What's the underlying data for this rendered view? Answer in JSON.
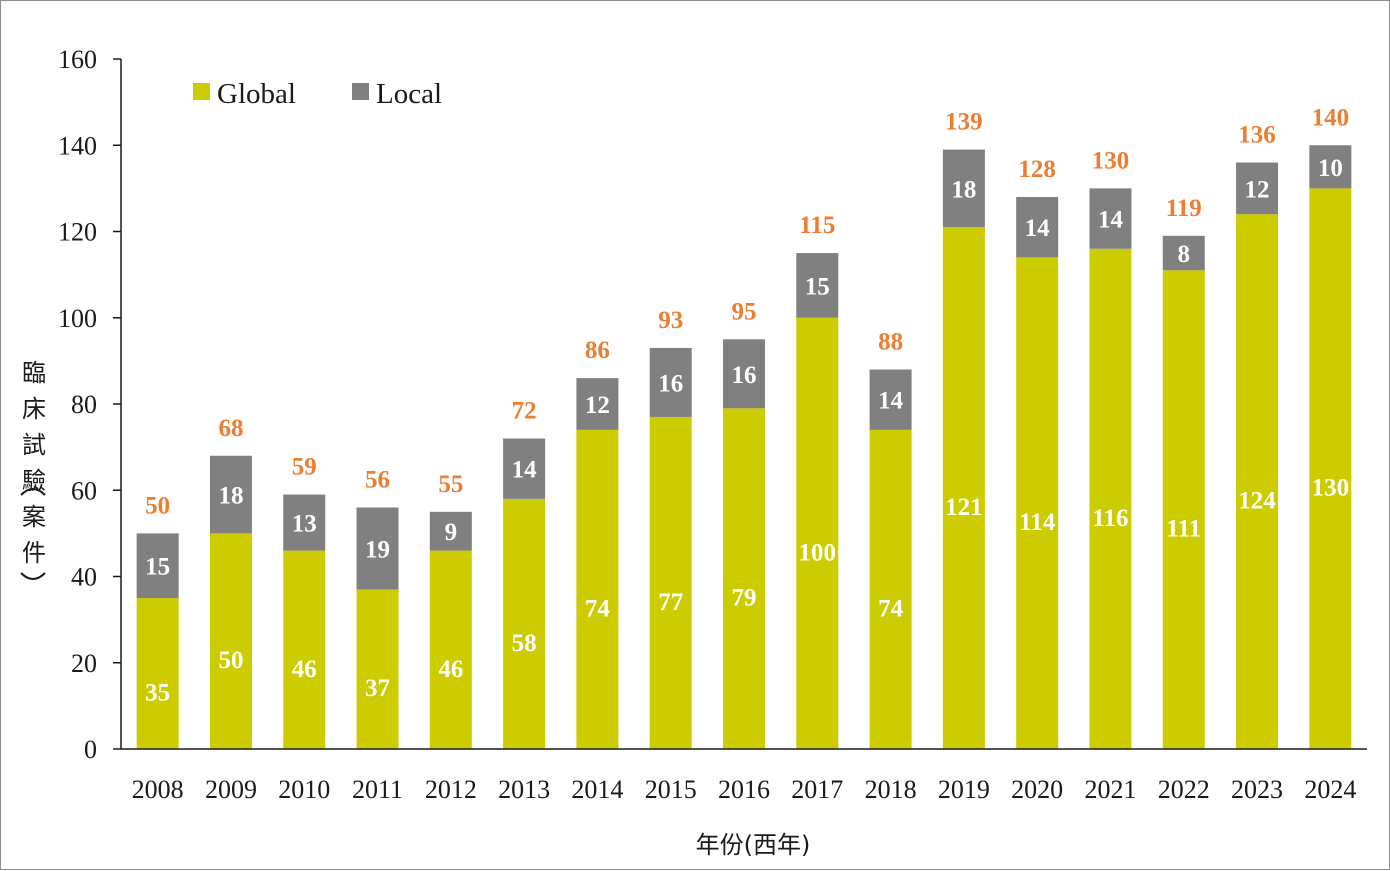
{
  "chart_data": {
    "type": "bar",
    "stacked": true,
    "title": "",
    "xlabel": "年份(西年)",
    "ylabel": "臨床試驗案件",
    "ylim": [
      0,
      160
    ],
    "yticks": [
      "0",
      "20",
      "40",
      "60",
      "80",
      "100",
      "120",
      "140",
      "160"
    ],
    "categories": [
      "2008",
      "2009",
      "2010",
      "2011",
      "2012",
      "2013",
      "2014",
      "2015",
      "2016",
      "2017",
      "2018",
      "2019",
      "2020",
      "2021",
      "2022",
      "2023",
      "2024"
    ],
    "series": [
      {
        "name": "Global",
        "color": "#cccc00",
        "values": [
          35,
          50,
          46,
          37,
          46,
          58,
          74,
          77,
          79,
          100,
          74,
          121,
          114,
          116,
          111,
          124,
          130
        ]
      },
      {
        "name": "Local",
        "color": "#808080",
        "values": [
          15,
          18,
          13,
          19,
          9,
          14,
          12,
          16,
          16,
          15,
          14,
          18,
          14,
          14,
          8,
          12,
          10
        ]
      }
    ],
    "totals": [
      50,
      68,
      59,
      56,
      55,
      72,
      86,
      93,
      95,
      115,
      88,
      139,
      128,
      130,
      119,
      136,
      140
    ],
    "total_color": "#ed7d31",
    "legend_position": "top-left"
  }
}
